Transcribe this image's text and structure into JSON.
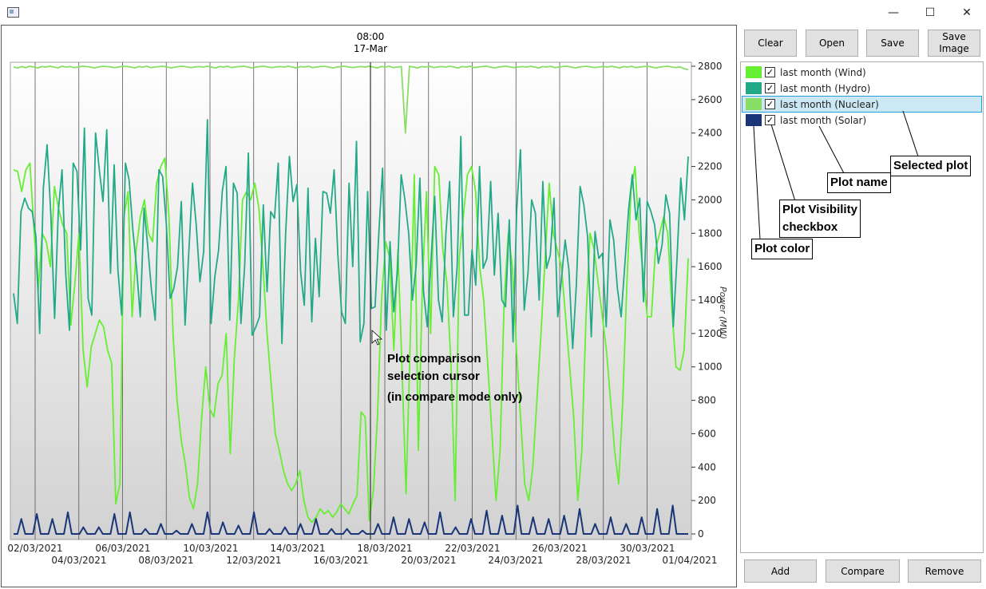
{
  "window": {
    "minimize_glyph": "—",
    "maximize_glyph": "☐",
    "close_glyph": "✕"
  },
  "chart": {
    "cursor_time": "08:00",
    "cursor_date": "17-Mar",
    "ylabel": "Power (MW)",
    "x_labels_top": [
      "02/03/2021",
      "06/03/2021",
      "10/03/2021",
      "14/03/2021",
      "18/03/2021",
      "22/03/2021",
      "26/03/2021",
      "30/03/2021"
    ],
    "x_labels_bottom": [
      "04/03/2021",
      "08/03/2021",
      "12/03/2021",
      "16/03/2021",
      "20/03/2021",
      "24/03/2021",
      "28/03/2021",
      "01/04/2021"
    ],
    "annotation_lines": [
      "Plot comparison",
      "selection cursor",
      "(in compare mode only)"
    ]
  },
  "chart_data": {
    "type": "line",
    "ylabel": "Power (MW)",
    "ylim": [
      0,
      2800
    ],
    "yticks": [
      0,
      200,
      400,
      600,
      800,
      1000,
      1200,
      1400,
      1600,
      1800,
      2000,
      2200,
      2400,
      2600,
      2800
    ],
    "grid": "vertical",
    "cursor_x": "17-Mar 08:00",
    "legend_position": "right panel",
    "series": [
      {
        "name": "last month (Wind)",
        "color": "#66ee33",
        "values": [
          2180,
          2170,
          2050,
          2180,
          2220,
          1820,
          1450,
          1800,
          1750,
          1600,
          2080,
          1950,
          1850,
          1800,
          1250,
          1500,
          1800,
          1100,
          880,
          1120,
          1200,
          1280,
          1240,
          1100,
          1020,
          180,
          300,
          1900,
          2050,
          1300,
          1700,
          1900,
          2000,
          1800,
          1750,
          2100,
          2200,
          2250,
          1900,
          1200,
          800,
          560,
          420,
          220,
          150,
          300,
          700,
          1000,
          750,
          700,
          900,
          950,
          1200,
          480,
          1050,
          1400,
          2000,
          2050,
          2000,
          2100,
          1950,
          1600,
          1200,
          900,
          600,
          500,
          380,
          300,
          260,
          300,
          380,
          200,
          100,
          70,
          100,
          150,
          120,
          140,
          100,
          130,
          180,
          150,
          120,
          180,
          230,
          730,
          700,
          80,
          260,
          700,
          1400,
          1750,
          1650,
          1100,
          1700,
          1000,
          240,
          1150,
          2150,
          500,
          1500,
          2050,
          1200,
          2200,
          2150,
          1700,
          1500,
          1000,
          200,
          1650,
          1900,
          2150,
          2200,
          2050,
          1600,
          1400,
          1000,
          600,
          200,
          500,
          1400,
          1800,
          1600,
          1100,
          700,
          300,
          200,
          400,
          800,
          1200,
          1650,
          2100,
          1800,
          1700,
          1600,
          1300,
          1000,
          700,
          200,
          500,
          1300,
          1800,
          1700,
          1500,
          1300,
          1100,
          800,
          500,
          300,
          800,
          1500,
          2050,
          2200,
          1800,
          1550,
          1300,
          1300,
          1700,
          1800,
          1900,
          1800,
          1350,
          1000,
          980,
          1100,
          1650
        ]
      },
      {
        "name": "last month (Hydro)",
        "color": "#22aa88",
        "values": [
          1440,
          1260,
          1930,
          2010,
          1950,
          1930,
          1780,
          1200,
          2070,
          2330,
          1910,
          1290,
          1930,
          2180,
          1550,
          1220,
          2220,
          2170,
          1700,
          2430,
          1410,
          1310,
          2400,
          2180,
          1990,
          2420,
          1560,
          2210,
          1580,
          1310,
          2220,
          2120,
          1820,
          1590,
          1300,
          1950,
          1720,
          1460,
          1280,
          2180,
          2140,
          1850,
          1410,
          1470,
          1600,
          1990,
          1250,
          1680,
          2100,
          1850,
          1510,
          1690,
          2480,
          1260,
          1540,
          1700,
          2050,
          2200,
          1280,
          2100,
          2040,
          1260,
          1600,
          2280,
          1190,
          1240,
          1300,
          1970,
          1450,
          1930,
          1890,
          2220,
          1140,
          1800,
          2260,
          1990,
          2090,
          1570,
          1370,
          2070,
          1270,
          1770,
          1420,
          2050,
          2040,
          1920,
          2180,
          1670,
          1330,
          1260,
          2100,
          1600,
          2350,
          1150,
          1260,
          2050,
          1350,
          1360,
          1800,
          2190,
          1220,
          1750,
          1330,
          1580,
          2150,
          2000,
          1800,
          1400,
          1600,
          2130,
          1450,
          1240,
          1640,
          2020,
          1400,
          1270,
          1800,
          2110,
          1300,
          1600,
          2380,
          1310,
          1310,
          1700,
          1490,
          2200,
          1590,
          1650,
          2110,
          1550,
          1920,
          1400,
          1360,
          1880,
          1150,
          1940,
          2300,
          1340,
          1560,
          2000,
          1920,
          1400,
          2110,
          1590,
          1670,
          2010,
          1300,
          1530,
          1760,
          1580,
          1110,
          1490,
          2080,
          1970,
          1780,
          1180,
          1810,
          1650,
          1680,
          1240,
          1880,
          1760,
          1470,
          1300,
          1610,
          1940,
          2150,
          1880,
          2010,
          1390,
          1990,
          1930,
          1850,
          1620,
          1730,
          2030,
          1920,
          1240,
          1650,
          2130,
          1880,
          2260
        ]
      },
      {
        "name": "last month (Nuclear)",
        "color": "#88dd66",
        "values": [
          2795,
          2790,
          2798,
          2792,
          2800,
          2795,
          2790,
          2798,
          2795,
          2800,
          2795,
          2790,
          2800,
          2795,
          2798,
          2792,
          2795,
          2800,
          2798,
          2795,
          2790,
          2795,
          2800,
          2798,
          2796,
          2792,
          2795,
          2800,
          2798,
          2795,
          2790,
          2798,
          2795,
          2800,
          2792,
          2795,
          2798,
          2800,
          2795,
          2790,
          2795,
          2798,
          2800,
          2795,
          2792,
          2796,
          2798,
          2795,
          2800,
          2795,
          2790,
          2798,
          2795,
          2800,
          2792,
          2796,
          2798,
          2800,
          2795,
          2790,
          2795,
          2798,
          2800,
          2795,
          2792,
          2796,
          2798,
          2795,
          2800,
          2795,
          2790,
          2798,
          2795,
          2800,
          2792,
          2795,
          2798,
          2800,
          2795,
          2790,
          2795,
          2798,
          2800,
          2795,
          2792,
          2796,
          2798,
          2795,
          2800,
          2795,
          2790,
          2798,
          2795,
          2800,
          2792,
          2795,
          2798,
          2400,
          2800,
          2795,
          2790,
          2798,
          2795,
          2800,
          2792,
          2796,
          2798,
          2795,
          2800,
          2795,
          2790,
          2798,
          2795,
          2800,
          2792,
          2795,
          2798,
          2800,
          2795,
          2790,
          2795,
          2798,
          2800,
          2795,
          2792,
          2796,
          2798,
          2795,
          2800,
          2795,
          2790,
          2798,
          2795,
          2800,
          2792,
          2795,
          2798,
          2800,
          2795,
          2790,
          2795,
          2798,
          2800,
          2795,
          2792,
          2796,
          2798,
          2795,
          2800,
          2795,
          2790,
          2798,
          2795,
          2800,
          2792,
          2795,
          2798,
          2800,
          2795,
          2790,
          2795,
          2798,
          2800,
          2795,
          2792,
          2796,
          2785,
          2780
        ]
      },
      {
        "name": "last month (Solar)",
        "color": "#1a3578",
        "values": [
          0,
          0,
          90,
          0,
          0,
          0,
          120,
          0,
          0,
          0,
          90,
          0,
          0,
          0,
          130,
          0,
          0,
          0,
          40,
          0,
          0,
          0,
          40,
          0,
          0,
          0,
          120,
          0,
          0,
          0,
          130,
          0,
          0,
          0,
          30,
          0,
          0,
          0,
          60,
          0,
          0,
          0,
          20,
          0,
          0,
          0,
          60,
          0,
          0,
          0,
          130,
          0,
          0,
          0,
          70,
          0,
          0,
          0,
          50,
          0,
          0,
          0,
          130,
          0,
          0,
          0,
          30,
          0,
          0,
          0,
          40,
          0,
          0,
          0,
          60,
          0,
          0,
          0,
          90,
          0,
          0,
          0,
          30,
          0,
          0,
          0,
          30,
          0,
          0,
          0,
          20,
          0,
          0,
          0,
          60,
          0,
          0,
          0,
          100,
          0,
          0,
          0,
          90,
          0,
          0,
          0,
          70,
          0,
          0,
          0,
          130,
          0,
          0,
          0,
          40,
          0,
          0,
          0,
          90,
          0,
          0,
          0,
          140,
          0,
          0,
          0,
          110,
          0,
          0,
          0,
          170,
          0,
          0,
          0,
          100,
          0,
          0,
          0,
          90,
          0,
          0,
          0,
          110,
          0,
          0,
          0,
          150,
          0,
          0,
          0,
          60,
          0,
          0,
          0,
          100,
          0,
          0,
          0,
          60,
          0,
          0,
          0,
          100,
          0,
          0,
          0,
          150,
          0,
          0,
          0,
          170,
          0,
          0,
          0,
          0
        ]
      }
    ]
  },
  "toolbar": {
    "clear": "Clear",
    "open": "Open",
    "save": "Save",
    "save_image_1": "Save",
    "save_image_2": "Image"
  },
  "legend": {
    "items": [
      {
        "label": "last month (Wind)",
        "color": "#66ee33",
        "checked": true
      },
      {
        "label": "last month (Hydro)",
        "color": "#22aa88",
        "checked": true
      },
      {
        "label": "last month (Nuclear)",
        "color": "#88dd66",
        "checked": true
      },
      {
        "label": "last month (Solar)",
        "color": "#1a3578",
        "checked": true
      }
    ],
    "check_glyph": "✓"
  },
  "callouts": {
    "selected_plot": "Selected plot",
    "plot_name": "Plot name",
    "visibility_1": "Plot Visibility",
    "visibility_2": "checkbox",
    "plot_color": "Plot color"
  },
  "bottom": {
    "add": "Add",
    "compare": "Compare",
    "remove": "Remove"
  }
}
